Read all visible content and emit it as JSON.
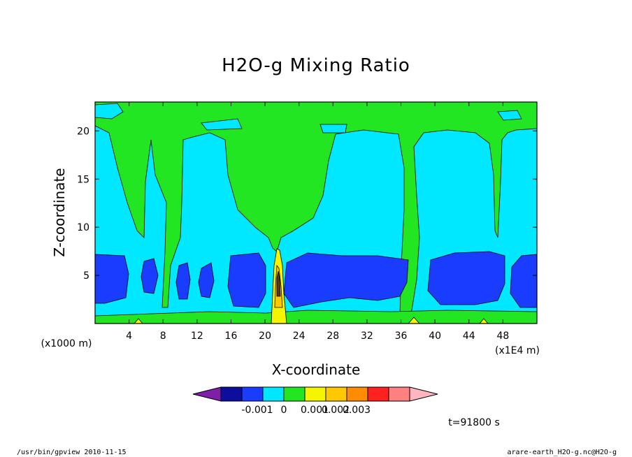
{
  "chart_data": {
    "type": "heatmap",
    "title": "H2O-g Mixing Ratio",
    "xlabel": "X-coordinate",
    "ylabel": "Z-coordinate",
    "x_unit": "(x1E4 m)",
    "y_unit": "(x1000 m)",
    "xlim": [
      0,
      52
    ],
    "ylim": [
      0,
      23
    ],
    "xticks": [
      "4",
      "8",
      "12",
      "16",
      "20",
      "24",
      "28",
      "32",
      "36",
      "40",
      "44",
      "48"
    ],
    "yticks": [
      "5",
      "10",
      "15",
      "20"
    ],
    "time_label": "t=91800 s",
    "colorbar": {
      "colors": [
        "#7f1fa8",
        "#0d0d9e",
        "#1a3cff",
        "#00e8ff",
        "#22e622",
        "#f5f500",
        "#ffc800",
        "#ff8c00",
        "#ff2020",
        "#ff8080",
        "#ffb6c1"
      ],
      "labels": [
        "-0.001",
        "0",
        "0.001",
        "0.002",
        "0.003"
      ]
    },
    "levels": {
      "deep_blue": "#1a3cff",
      "cyan": "#00e8ff",
      "green": "#22e622",
      "yellow": "#f5f500",
      "orange": "#ffc800"
    }
  },
  "footer": {
    "left": "/usr/bin/gpview  2010-11-15",
    "right": "arare-earth_H2O-g.nc@H2O-g"
  }
}
